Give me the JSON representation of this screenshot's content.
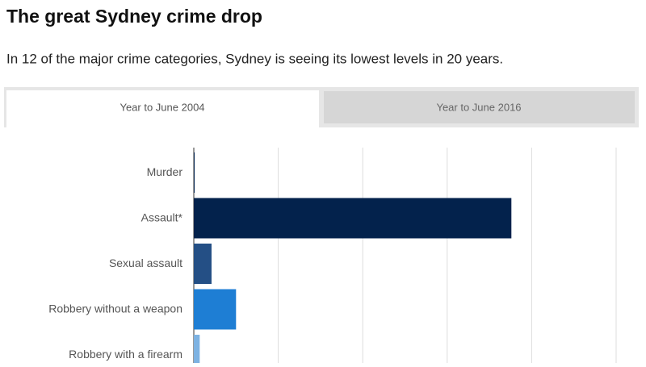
{
  "header": {
    "title": "The great Sydney crime drop",
    "subtitle": "In 12 of the major crime categories, Sydney is seeing its lowest levels in 20 years."
  },
  "tabs": [
    "Year to June 2004",
    "Year to June 2016"
  ],
  "chart_data": {
    "type": "bar",
    "orientation": "horizontal",
    "categories": [
      "Murder",
      "Assault*",
      "Sexual assault",
      "Robbery without a weapon",
      "Robbery with a firearm"
    ],
    "values": [
      0.01,
      3.76,
      0.21,
      0.5,
      0.07
    ],
    "colors": [
      "#0b2a55",
      "#03224c",
      "#244f85",
      "#1e7ed4",
      "#7db2e2"
    ],
    "xlim": [
      0,
      5
    ],
    "xticks": [
      0,
      1,
      2,
      3,
      4,
      5
    ],
    "grid": true
  }
}
